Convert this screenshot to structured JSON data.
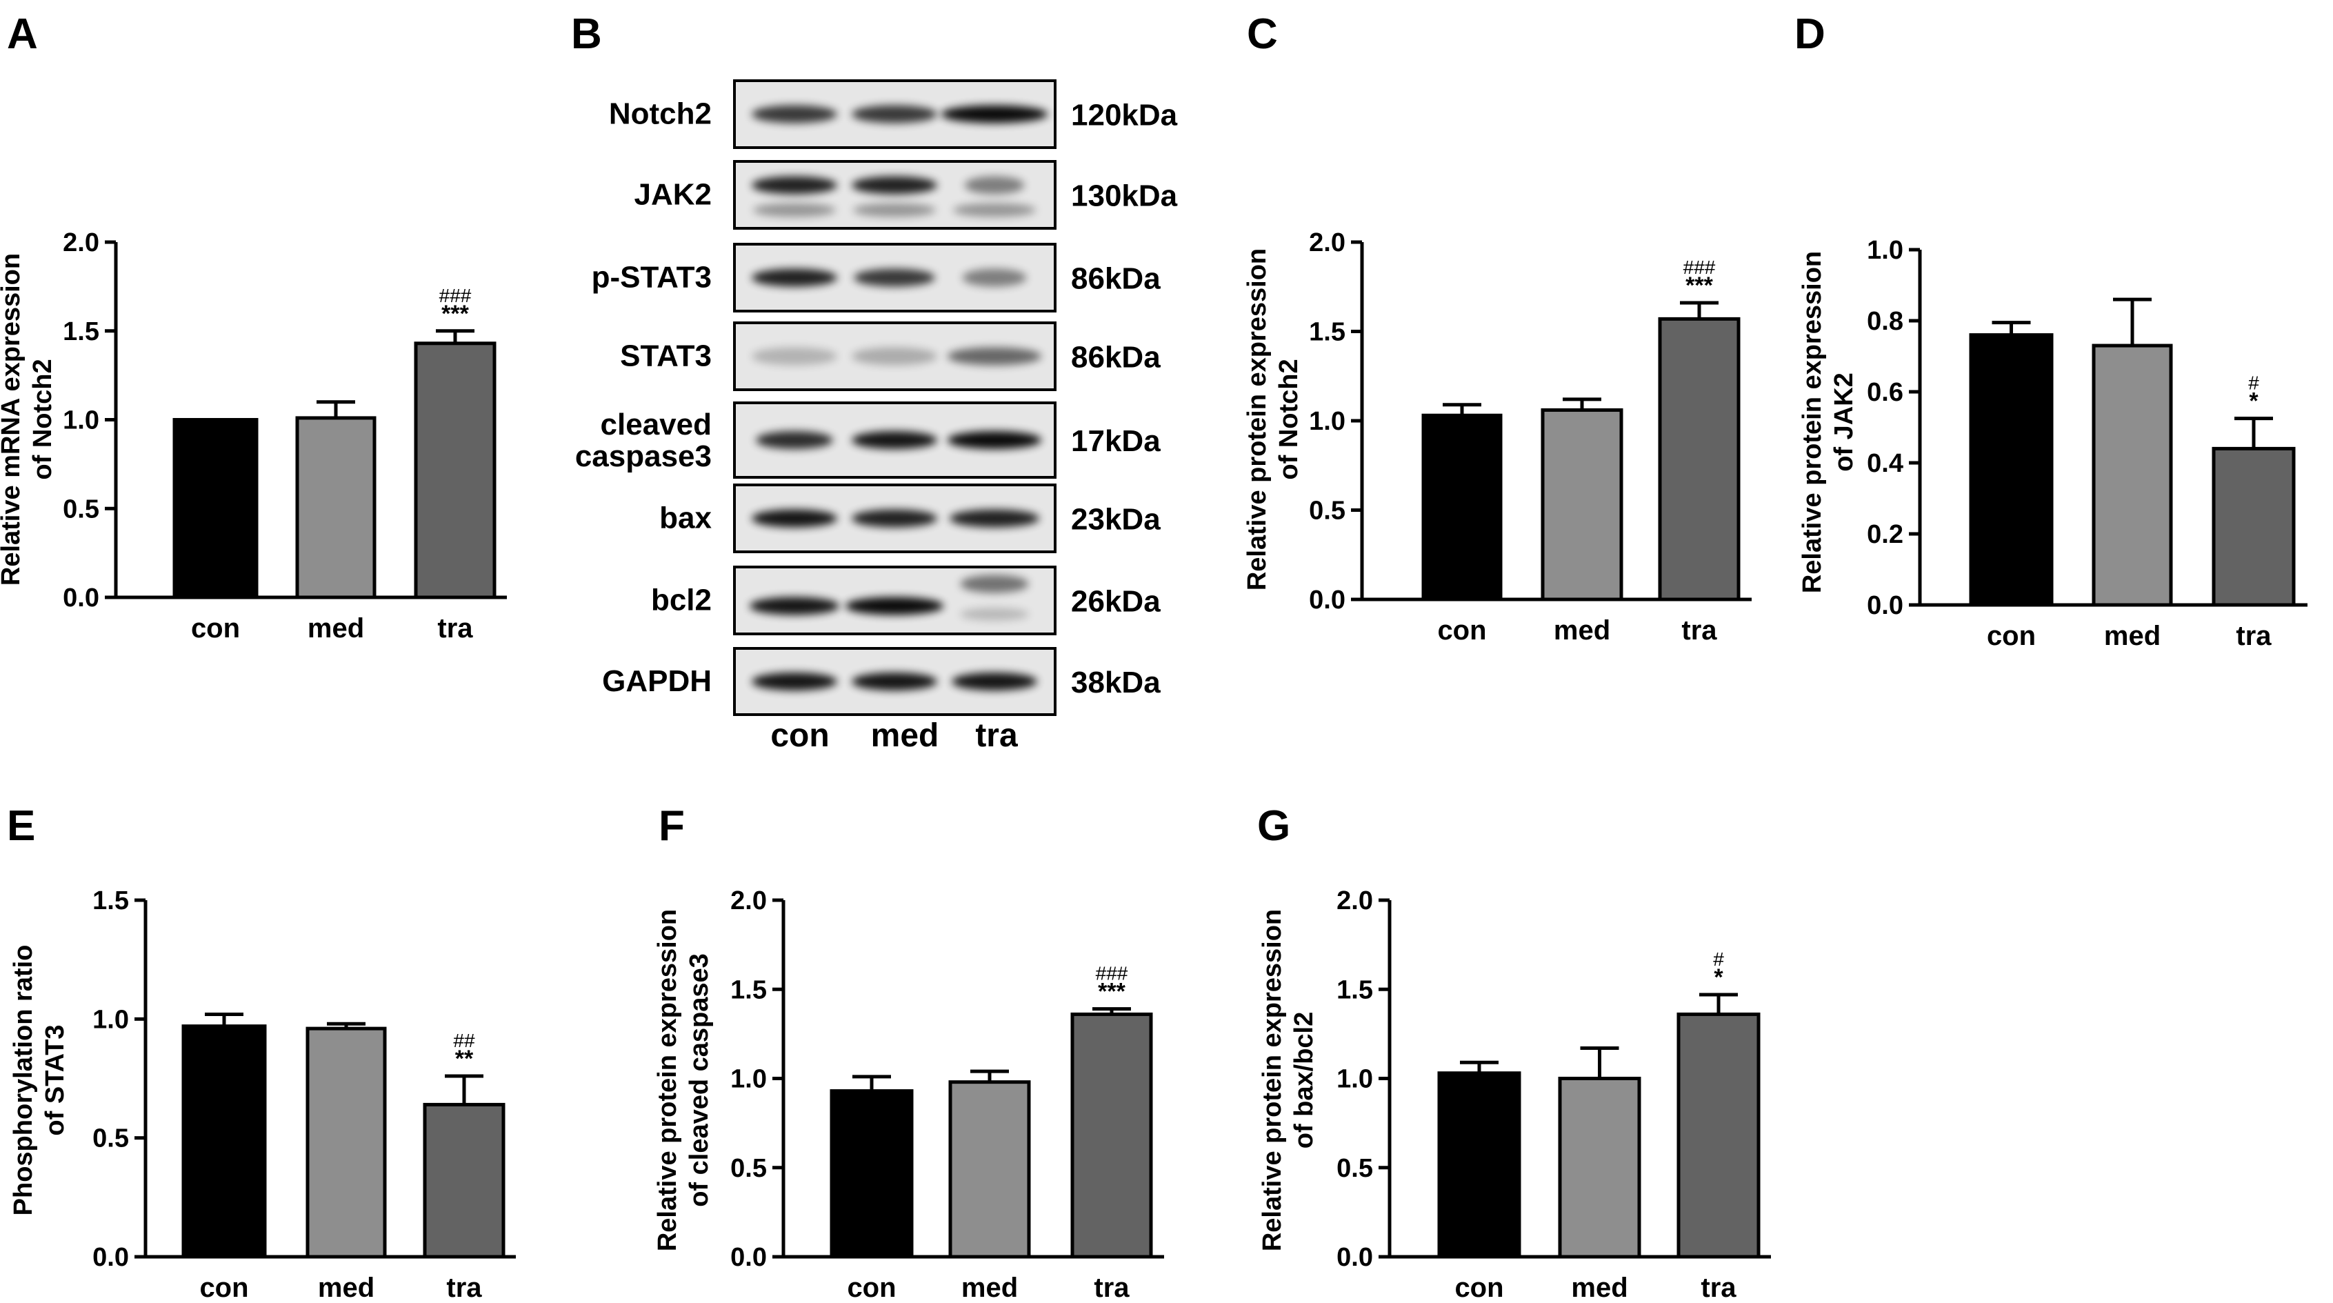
{
  "chart_data": [
    {
      "panel": "A",
      "type": "bar",
      "ylabel": [
        "Relative mRNA expression",
        "of Notch2"
      ],
      "categories": [
        "con",
        "med",
        "tra"
      ],
      "values": [
        1.0,
        1.01,
        1.43
      ],
      "errors": [
        0.0,
        0.09,
        0.07
      ],
      "significance": [
        [
          "",
          ""
        ],
        [
          "",
          ""
        ],
        [
          "###",
          "***"
        ]
      ],
      "ylim": [
        0,
        2.0
      ],
      "yticks": [
        "0.0",
        "0.5",
        "1.0",
        "1.5",
        "2.0"
      ]
    },
    {
      "panel": "C",
      "type": "bar",
      "ylabel": [
        "Relative protein expression",
        "of Notch2"
      ],
      "categories": [
        "con",
        "med",
        "tra"
      ],
      "values": [
        1.03,
        1.06,
        1.57
      ],
      "errors": [
        0.06,
        0.06,
        0.09
      ],
      "significance": [
        [
          "",
          ""
        ],
        [
          "",
          ""
        ],
        [
          "###",
          "***"
        ]
      ],
      "ylim": [
        0,
        2.0
      ],
      "yticks": [
        "0.0",
        "0.5",
        "1.0",
        "1.5",
        "2.0"
      ]
    },
    {
      "panel": "D",
      "type": "bar",
      "ylabel": [
        "Relative protein expression",
        "of JAK2"
      ],
      "categories": [
        "con",
        "med",
        "tra"
      ],
      "values": [
        0.76,
        0.73,
        0.44
      ],
      "errors": [
        0.035,
        0.13,
        0.085
      ],
      "significance": [
        [
          "",
          ""
        ],
        [
          "",
          ""
        ],
        [
          "#",
          "*"
        ]
      ],
      "ylim": [
        0,
        1.0
      ],
      "yticks": [
        "0.0",
        "0.2",
        "0.4",
        "0.6",
        "0.8",
        "1.0"
      ]
    },
    {
      "panel": "E",
      "type": "bar",
      "ylabel": [
        "Phosphorylation ratio",
        "of STAT3"
      ],
      "categories": [
        "con",
        "med",
        "tra"
      ],
      "values": [
        0.97,
        0.96,
        0.64
      ],
      "errors": [
        0.05,
        0.02,
        0.12
      ],
      "significance": [
        [
          "",
          ""
        ],
        [
          "",
          ""
        ],
        [
          "##",
          "**"
        ]
      ],
      "ylim": [
        0,
        1.5
      ],
      "yticks": [
        "0.0",
        "0.5",
        "1.0",
        "1.5"
      ]
    },
    {
      "panel": "F",
      "type": "bar",
      "ylabel": [
        "Relative protein expression",
        "of cleaved caspase3"
      ],
      "categories": [
        "con",
        "med",
        "tra"
      ],
      "values": [
        0.93,
        0.98,
        1.36
      ],
      "errors": [
        0.08,
        0.06,
        0.03
      ],
      "significance": [
        [
          "",
          ""
        ],
        [
          "",
          ""
        ],
        [
          "###",
          "***"
        ]
      ],
      "ylim": [
        0,
        2.0
      ],
      "yticks": [
        "0.0",
        "0.5",
        "1.0",
        "1.5",
        "2.0"
      ]
    },
    {
      "panel": "G",
      "type": "bar",
      "ylabel": [
        "Relative protein expression",
        "of bax/bcl2"
      ],
      "categories": [
        "con",
        "med",
        "tra"
      ],
      "values": [
        1.03,
        1.0,
        1.36
      ],
      "errors": [
        0.06,
        0.17,
        0.11
      ],
      "significance": [
        [
          "",
          ""
        ],
        [
          "",
          ""
        ],
        [
          "#",
          "*"
        ]
      ],
      "ylim": [
        0,
        2.0
      ],
      "yticks": [
        "0.0",
        "0.5",
        "1.0",
        "1.5",
        "2.0"
      ]
    }
  ],
  "bar_colors": [
    "#000000",
    "#8e8e8e",
    "#636363"
  ],
  "blot": {
    "panel": "B",
    "proteins": [
      "Notch2",
      "JAK2",
      "p-STAT3",
      "STAT3",
      "cleaved\ncaspase3",
      "bax",
      "bcl2",
      "GAPDH"
    ],
    "sizes": [
      "120kDa",
      "130kDa",
      "86kDa",
      "86kDa",
      "17kDa",
      "23kDa",
      "26kDa",
      "38kDa"
    ],
    "lanes": [
      "con",
      "med",
      "tra"
    ]
  }
}
